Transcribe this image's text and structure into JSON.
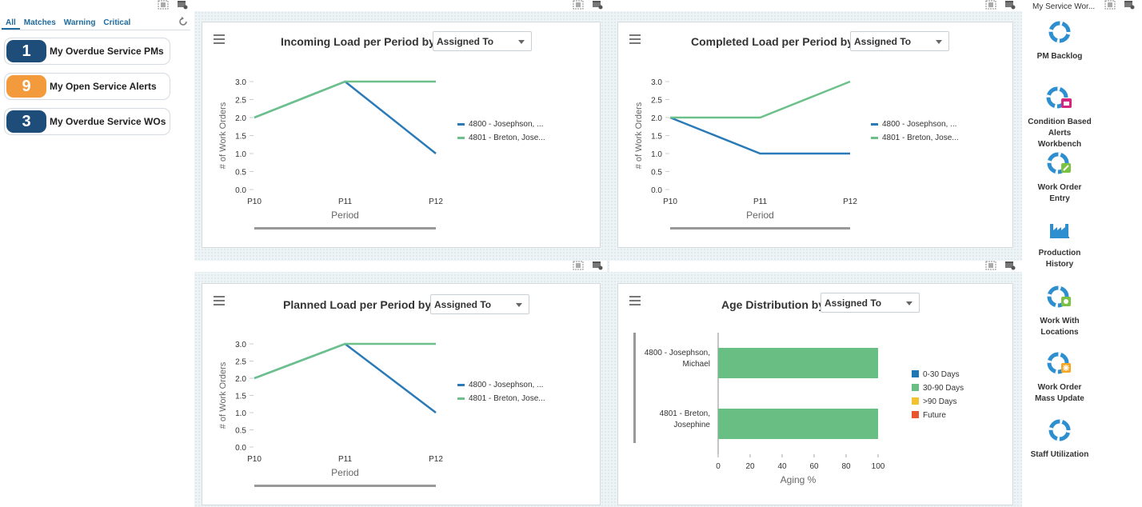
{
  "alerts_pane": {
    "tabs": [
      "All",
      "Matches",
      "Warning",
      "Critical"
    ],
    "alerts": [
      {
        "count": "1",
        "label": "My Overdue Service PMs",
        "color": "#1e4d7a"
      },
      {
        "count": "9",
        "label": "My Open Service Alerts",
        "color": "#f39a3d"
      },
      {
        "count": "3",
        "label": "My Overdue Service WOs",
        "color": "#1e4d7a"
      }
    ]
  },
  "panels": {
    "incoming": {
      "title": "Incoming Load per Period by",
      "select_value": "Assigned To"
    },
    "completed": {
      "title": "Completed Load per Period by",
      "select_value": "Assigned To"
    },
    "planned": {
      "title": "Planned Load per Period by",
      "select_value": "Assigned To"
    },
    "age": {
      "title": "Age Distribution by",
      "select_value": "Assigned To"
    }
  },
  "colors": {
    "series_blue": "#2a7ab8",
    "series_green": "#6cc18a",
    "bar_green": "#69be83",
    "badge_navy": "#1e4d7a",
    "badge_orange": "#f39a3d",
    "icon_blue": "#2e8fd0"
  },
  "chart_data": [
    {
      "type": "line",
      "title": "Incoming Load per Period by",
      "xlabel": "Period",
      "ylabel": "# of Work Orders",
      "categories": [
        "P10",
        "P11",
        "P12"
      ],
      "ylim": [
        0,
        3
      ],
      "yticks": [
        "0.0",
        "0.5",
        "1.0",
        "1.5",
        "2.0",
        "2.5",
        "3.0"
      ],
      "series": [
        {
          "name": "4800 - Josephson, ...",
          "values": [
            2,
            3,
            1
          ]
        },
        {
          "name": "4801 - Breton, Jose...",
          "values": [
            2,
            3,
            3
          ]
        }
      ]
    },
    {
      "type": "line",
      "title": "Completed Load per Period by",
      "xlabel": "Period",
      "ylabel": "# of Work Orders",
      "categories": [
        "P10",
        "P11",
        "P12"
      ],
      "ylim": [
        0,
        3
      ],
      "yticks": [
        "0.0",
        "0.5",
        "1.0",
        "1.5",
        "2.0",
        "2.5",
        "3.0"
      ],
      "series": [
        {
          "name": "4800 - Josephson, ...",
          "values": [
            2,
            1,
            1
          ]
        },
        {
          "name": "4801 - Breton, Jose...",
          "values": [
            2,
            2,
            3
          ]
        }
      ]
    },
    {
      "type": "line",
      "title": "Planned Load per Period by",
      "xlabel": "Period",
      "ylabel": "# of Work Orders",
      "categories": [
        "P10",
        "P11",
        "P12"
      ],
      "ylim": [
        0,
        3
      ],
      "yticks": [
        "0.0",
        "0.5",
        "1.0",
        "1.5",
        "2.0",
        "2.5",
        "3.0"
      ],
      "series": [
        {
          "name": "4800 - Josephson, ...",
          "values": [
            2,
            3,
            1
          ]
        },
        {
          "name": "4801 - Breton, Jose...",
          "values": [
            2,
            3,
            3
          ]
        }
      ]
    },
    {
      "type": "bar",
      "orientation": "horizontal",
      "stacked": true,
      "title": "Age Distribution by",
      "xlabel": "Aging %",
      "categories": [
        [
          "4800 - Josephson,",
          "Michael"
        ],
        [
          "4801 - Breton,",
          "Josephine"
        ]
      ],
      "xlim": [
        0,
        100
      ],
      "xticks": [
        "0",
        "20",
        "40",
        "60",
        "80",
        "100"
      ],
      "series": [
        {
          "name": "0-30 Days",
          "values": [
            0,
            0
          ],
          "color": "#1f77b4"
        },
        {
          "name": "30-90 Days",
          "values": [
            100,
            100
          ],
          "color": "#69be83"
        },
        {
          "name": ">90 Days",
          "values": [
            0,
            0
          ],
          "color": "#f2c231"
        },
        {
          "name": "Future",
          "values": [
            0,
            0
          ],
          "color": "#e8552f"
        }
      ]
    }
  ],
  "springboard": {
    "title": "My Service Wor...",
    "tiles": [
      {
        "label1": "PM Backlog",
        "label2": ""
      },
      {
        "label1": "Condition Based",
        "label2": "Alerts",
        "label3": "Workbench"
      },
      {
        "label1": "Work Order",
        "label2": "Entry"
      },
      {
        "label1": "Production",
        "label2": "History"
      },
      {
        "label1": "Work With",
        "label2": "Locations"
      },
      {
        "label1": "Work Order",
        "label2": "Mass Update"
      },
      {
        "label1": "Staff Utilization",
        "label2": ""
      }
    ]
  }
}
